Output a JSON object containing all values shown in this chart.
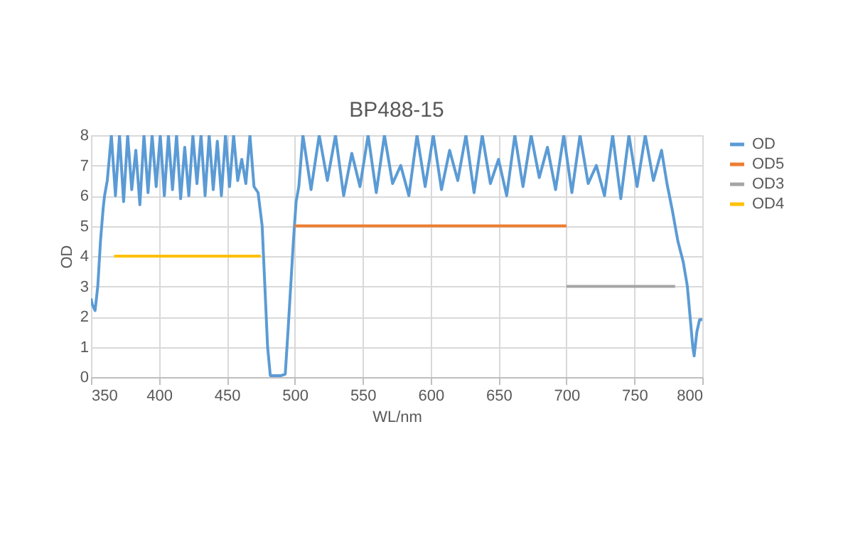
{
  "chart_data": {
    "type": "line",
    "title": "BP488-15",
    "xlabel": "WL/nm",
    "ylabel": "OD",
    "xlim": [
      350,
      800
    ],
    "xticks": [
      350,
      400,
      450,
      500,
      550,
      600,
      650,
      700,
      750,
      800
    ],
    "ylim": [
      0,
      8
    ],
    "yticks": [
      0,
      1,
      2,
      3,
      4,
      5,
      6,
      7,
      8
    ],
    "grid": true,
    "legend": "right",
    "marker": "none",
    "line_style": "solid",
    "series": [
      {
        "name": "OD",
        "color": "#5b9bd5",
        "x": [
          350,
          351,
          353,
          355,
          357,
          359,
          360,
          362,
          365,
          368,
          371,
          374,
          377,
          380,
          383,
          386,
          389,
          392,
          395,
          398,
          401,
          404,
          407,
          410,
          413,
          416,
          419,
          422,
          425,
          428,
          431,
          434,
          437,
          440,
          443,
          446,
          449,
          452,
          455,
          458,
          461,
          464,
          467,
          470,
          473,
          476,
          478,
          480,
          482,
          486,
          490,
          493,
          495,
          497,
          499,
          501,
          503,
          506,
          512,
          518,
          524,
          530,
          536,
          542,
          548,
          554,
          560,
          566,
          572,
          578,
          584,
          590,
          596,
          602,
          608,
          614,
          620,
          626,
          632,
          638,
          644,
          650,
          656,
          662,
          668,
          674,
          680,
          686,
          692,
          698,
          704,
          710,
          716,
          722,
          728,
          734,
          740,
          746,
          752,
          758,
          764,
          770,
          774,
          778,
          782,
          786,
          789,
          791,
          793,
          794,
          796,
          798,
          800
        ],
        "values": [
          2.6,
          2.4,
          2.2,
          3.0,
          4.5,
          5.6,
          6.0,
          6.5,
          8,
          6.0,
          8,
          5.8,
          8,
          6.2,
          7.5,
          5.7,
          8,
          6.1,
          8,
          6.3,
          8,
          6.0,
          8,
          6.2,
          8,
          5.9,
          7.6,
          6.0,
          8,
          6.4,
          8,
          6.0,
          8,
          6.2,
          7.8,
          6.0,
          8,
          6.3,
          8,
          6.5,
          7.2,
          6.4,
          8,
          6.3,
          6.1,
          5.0,
          3.0,
          1.0,
          0.05,
          0.05,
          0.05,
          0.1,
          1.5,
          3.0,
          4.5,
          5.8,
          6.3,
          8,
          6.2,
          8,
          6.5,
          8,
          6.0,
          7.4,
          6.3,
          8,
          6.1,
          8,
          6.4,
          7.0,
          6.0,
          8,
          6.3,
          8,
          6.2,
          7.5,
          6.5,
          8,
          6.1,
          8,
          6.4,
          7.2,
          6.0,
          8,
          6.3,
          8,
          6.6,
          7.6,
          6.2,
          8,
          6.1,
          8,
          6.4,
          7.0,
          6.0,
          8,
          5.9,
          8,
          6.3,
          8,
          6.5,
          7.5,
          6.4,
          5.5,
          4.5,
          3.8,
          3.0,
          2.0,
          1.0,
          0.7,
          1.5,
          1.9,
          1.9
        ]
      },
      {
        "name": "OD5",
        "color": "#ed7d31",
        "x": [
          500,
          700
        ],
        "values": [
          5,
          5
        ]
      },
      {
        "name": "OD3",
        "color": "#a5a5a5",
        "x": [
          700,
          780
        ],
        "values": [
          3,
          3
        ]
      },
      {
        "name": "OD4",
        "color": "#ffc000",
        "x": [
          367,
          475
        ],
        "values": [
          4,
          4
        ]
      }
    ]
  }
}
